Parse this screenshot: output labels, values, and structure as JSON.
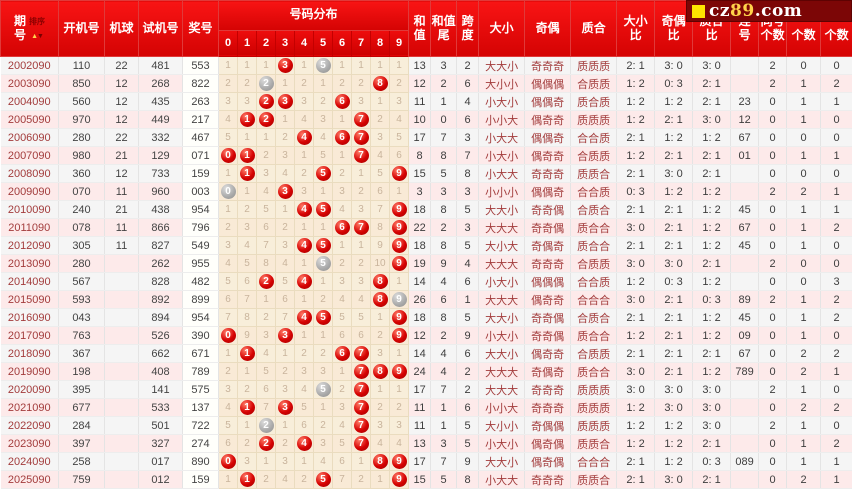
{
  "header": {
    "period": "期\n号",
    "sort": "排序",
    "sort_up": "▲",
    "sort_down": "▼",
    "kaiji": "开机号",
    "jiqiu": "机球",
    "shiji": "试机号",
    "jiang": "奖号",
    "dist_title": "号码分布",
    "digits": [
      "0",
      "1",
      "2",
      "3",
      "4",
      "5",
      "6",
      "7",
      "8",
      "9"
    ],
    "he": "和\n值",
    "hewei": "和值\n尾",
    "kua": "跨\n度",
    "daxiao": "大小",
    "jiou": "奇偶",
    "zhihe": "质合",
    "dxb": "大小\n比",
    "job": "奇偶\n比",
    "zhb": "质合\n比",
    "lian": "连\n号",
    "tong": "同号\n个数",
    "gs2": "\n个数",
    "gs3": "\n个数"
  },
  "logo": {
    "square": "",
    "cz": "cz",
    "n89": "89",
    "com": ".com"
  },
  "colors": {
    "header_red": "#e00505",
    "row_gray": "#f5f5f5",
    "row_pink": "#fdeaea",
    "dist_cream": "#f8eeda",
    "dist_text": "#c9b49c",
    "ball_red": "#d60202",
    "ball_gray": "#a9a9a9",
    "period_text": "#a33c3c",
    "logo_bg": "#7c0606",
    "logo_yellow": "#ffe400"
  },
  "rows": [
    {
      "period": "2002090",
      "kaiji": "110",
      "jiqiu": "22",
      "shiji": "481",
      "jiang": "553",
      "dist": [
        "1",
        "1",
        "1",
        "R3",
        "1",
        "G5",
        "1",
        "1",
        "1",
        "1"
      ],
      "he": "13",
      "hewei": "3",
      "kua": "2",
      "dx": "大大小",
      "jo": "奇奇奇",
      "zh": "质质质",
      "dxb": "2: 1",
      "job": "3: 0",
      "zhb": "3: 0",
      "lian": "",
      "t1": "2",
      "t2": "0",
      "t3": "0"
    },
    {
      "period": "2003090",
      "kaiji": "850",
      "jiqiu": "12",
      "shiji": "268",
      "jiang": "822",
      "dist": [
        "2",
        "2",
        "G2",
        "1",
        "2",
        "1",
        "2",
        "2",
        "R8",
        "2"
      ],
      "he": "12",
      "hewei": "2",
      "kua": "6",
      "dx": "大小小",
      "jo": "偶偶偶",
      "zh": "合质质",
      "dxb": "1: 2",
      "job": "0: 3",
      "zhb": "2: 1",
      "lian": "",
      "t1": "2",
      "t2": "1",
      "t3": "2"
    },
    {
      "period": "2004090",
      "kaiji": "560",
      "jiqiu": "12",
      "shiji": "435",
      "jiang": "263",
      "dist": [
        "3",
        "3",
        "R2",
        "R3",
        "3",
        "2",
        "R6",
        "3",
        "1",
        "3"
      ],
      "he": "11",
      "hewei": "1",
      "kua": "4",
      "dx": "小大小",
      "jo": "偶偶奇",
      "zh": "质合质",
      "dxb": "1: 2",
      "job": "1: 2",
      "zhb": "2: 1",
      "lian": "23",
      "t1": "0",
      "t2": "1",
      "t3": "1"
    },
    {
      "period": "2005090",
      "kaiji": "970",
      "jiqiu": "12",
      "shiji": "449",
      "jiang": "217",
      "dist": [
        "4",
        "R1",
        "R2",
        "1",
        "4",
        "3",
        "1",
        "R7",
        "2",
        "4"
      ],
      "he": "10",
      "hewei": "0",
      "kua": "6",
      "dx": "小小大",
      "jo": "偶奇奇",
      "zh": "质质质",
      "dxb": "1: 2",
      "job": "2: 1",
      "zhb": "3: 0",
      "lian": "12",
      "t1": "0",
      "t2": "1",
      "t3": "0"
    },
    {
      "period": "2006090",
      "kaiji": "280",
      "jiqiu": "22",
      "shiji": "332",
      "jiang": "467",
      "dist": [
        "5",
        "1",
        "1",
        "2",
        "R4",
        "4",
        "R6",
        "R7",
        "3",
        "5"
      ],
      "he": "17",
      "hewei": "7",
      "kua": "3",
      "dx": "小大大",
      "jo": "偶偶奇",
      "zh": "合合质",
      "dxb": "2: 1",
      "job": "1: 2",
      "zhb": "1: 2",
      "lian": "67",
      "t1": "0",
      "t2": "0",
      "t3": "0"
    },
    {
      "period": "2007090",
      "kaiji": "980",
      "jiqiu": "21",
      "shiji": "129",
      "jiang": "071",
      "dist": [
        "R0",
        "R1",
        "2",
        "3",
        "1",
        "5",
        "1",
        "R7",
        "4",
        "6"
      ],
      "he": "8",
      "hewei": "8",
      "kua": "7",
      "dx": "小大小",
      "jo": "偶奇奇",
      "zh": "合质质",
      "dxb": "1: 2",
      "job": "2: 1",
      "zhb": "2: 1",
      "lian": "01",
      "t1": "0",
      "t2": "1",
      "t3": "1"
    },
    {
      "period": "2008090",
      "kaiji": "360",
      "jiqiu": "12",
      "shiji": "733",
      "jiang": "159",
      "dist": [
        "1",
        "R1",
        "3",
        "4",
        "2",
        "R5",
        "2",
        "1",
        "5",
        "R9"
      ],
      "he": "15",
      "hewei": "5",
      "kua": "8",
      "dx": "小大大",
      "jo": "奇奇奇",
      "zh": "质质合",
      "dxb": "2: 1",
      "job": "3: 0",
      "zhb": "2: 1",
      "lian": "",
      "t1": "0",
      "t2": "0",
      "t3": "0"
    },
    {
      "period": "2009090",
      "kaiji": "070",
      "jiqiu": "11",
      "shiji": "960",
      "jiang": "003",
      "dist": [
        "G0",
        "1",
        "4",
        "R3",
        "3",
        "1",
        "3",
        "2",
        "6",
        "1"
      ],
      "he": "3",
      "hewei": "3",
      "kua": "3",
      "dx": "小小小",
      "jo": "偶偶奇",
      "zh": "合合质",
      "dxb": "0: 3",
      "job": "1: 2",
      "zhb": "1: 2",
      "lian": "",
      "t1": "2",
      "t2": "2",
      "t3": "1"
    },
    {
      "period": "2010090",
      "kaiji": "240",
      "jiqiu": "21",
      "shiji": "438",
      "jiang": "954",
      "dist": [
        "1",
        "2",
        "5",
        "1",
        "R4",
        "R5",
        "4",
        "3",
        "7",
        "R9"
      ],
      "he": "18",
      "hewei": "8",
      "kua": "5",
      "dx": "大大小",
      "jo": "奇奇偶",
      "zh": "合质合",
      "dxb": "2: 1",
      "job": "2: 1",
      "zhb": "1: 2",
      "lian": "45",
      "t1": "0",
      "t2": "1",
      "t3": "1"
    },
    {
      "period": "2011090",
      "kaiji": "078",
      "jiqiu": "11",
      "shiji": "866",
      "jiang": "796",
      "dist": [
        "2",
        "3",
        "6",
        "2",
        "1",
        "1",
        "R6",
        "R7",
        "8",
        "R9"
      ],
      "he": "22",
      "hewei": "2",
      "kua": "3",
      "dx": "大大大",
      "jo": "奇奇偶",
      "zh": "质合合",
      "dxb": "3: 0",
      "job": "2: 1",
      "zhb": "1: 2",
      "lian": "67",
      "t1": "0",
      "t2": "1",
      "t3": "2"
    },
    {
      "period": "2012090",
      "kaiji": "305",
      "jiqiu": "11",
      "shiji": "827",
      "jiang": "549",
      "dist": [
        "3",
        "4",
        "7",
        "3",
        "R4",
        "R5",
        "1",
        "1",
        "9",
        "R9"
      ],
      "he": "18",
      "hewei": "8",
      "kua": "5",
      "dx": "大小大",
      "jo": "奇偶奇",
      "zh": "质合合",
      "dxb": "2: 1",
      "job": "2: 1",
      "zhb": "1: 2",
      "lian": "45",
      "t1": "0",
      "t2": "1",
      "t3": "0"
    },
    {
      "period": "2013090",
      "kaiji": "280",
      "jiqiu": "",
      "shiji": "262",
      "jiang": "955",
      "dist": [
        "4",
        "5",
        "8",
        "4",
        "1",
        "G5",
        "2",
        "2",
        "10",
        "R9"
      ],
      "he": "19",
      "hewei": "9",
      "kua": "4",
      "dx": "大大大",
      "jo": "奇奇奇",
      "zh": "合质质",
      "dxb": "3: 0",
      "job": "3: 0",
      "zhb": "2: 1",
      "lian": "",
      "t1": "2",
      "t2": "0",
      "t3": "0"
    },
    {
      "period": "2014090",
      "kaiji": "567",
      "jiqiu": "",
      "shiji": "828",
      "jiang": "482",
      "dist": [
        "5",
        "6",
        "R2",
        "5",
        "R4",
        "1",
        "3",
        "3",
        "R8",
        "1"
      ],
      "he": "14",
      "hewei": "4",
      "kua": "6",
      "dx": "小大小",
      "jo": "偶偶偶",
      "zh": "合合质",
      "dxb": "1: 2",
      "job": "0: 3",
      "zhb": "1: 2",
      "lian": "",
      "t1": "0",
      "t2": "0",
      "t3": "3"
    },
    {
      "period": "2015090",
      "kaiji": "593",
      "jiqiu": "",
      "shiji": "892",
      "jiang": "899",
      "dist": [
        "6",
        "7",
        "1",
        "6",
        "1",
        "2",
        "4",
        "4",
        "R8",
        "G9"
      ],
      "he": "26",
      "hewei": "6",
      "kua": "1",
      "dx": "大大大",
      "jo": "偶奇奇",
      "zh": "合合合",
      "dxb": "3: 0",
      "job": "2: 1",
      "zhb": "0: 3",
      "lian": "89",
      "t1": "2",
      "t2": "1",
      "t3": "2"
    },
    {
      "period": "2016090",
      "kaiji": "043",
      "jiqiu": "",
      "shiji": "894",
      "jiang": "954",
      "dist": [
        "7",
        "8",
        "2",
        "7",
        "R4",
        "R5",
        "5",
        "5",
        "1",
        "R9"
      ],
      "he": "18",
      "hewei": "8",
      "kua": "5",
      "dx": "大大小",
      "jo": "奇奇偶",
      "zh": "合质合",
      "dxb": "2: 1",
      "job": "2: 1",
      "zhb": "1: 2",
      "lian": "45",
      "t1": "0",
      "t2": "1",
      "t3": "2"
    },
    {
      "period": "2017090",
      "kaiji": "763",
      "jiqiu": "",
      "shiji": "526",
      "jiang": "390",
      "dist": [
        "R0",
        "9",
        "3",
        "R3",
        "1",
        "1",
        "6",
        "6",
        "2",
        "R9"
      ],
      "he": "12",
      "hewei": "2",
      "kua": "9",
      "dx": "小大小",
      "jo": "奇奇偶",
      "zh": "质合合",
      "dxb": "1: 2",
      "job": "2: 1",
      "zhb": "1: 2",
      "lian": "09",
      "t1": "0",
      "t2": "1",
      "t3": "0"
    },
    {
      "period": "2018090",
      "kaiji": "367",
      "jiqiu": "",
      "shiji": "662",
      "jiang": "671",
      "dist": [
        "1",
        "R1",
        "4",
        "1",
        "2",
        "2",
        "R6",
        "R7",
        "3",
        "1"
      ],
      "he": "14",
      "hewei": "4",
      "kua": "6",
      "dx": "大大小",
      "jo": "偶奇奇",
      "zh": "合质质",
      "dxb": "2: 1",
      "job": "2: 1",
      "zhb": "2: 1",
      "lian": "67",
      "t1": "0",
      "t2": "2",
      "t3": "2"
    },
    {
      "period": "2019090",
      "kaiji": "198",
      "jiqiu": "",
      "shiji": "408",
      "jiang": "789",
      "dist": [
        "2",
        "1",
        "5",
        "2",
        "3",
        "3",
        "1",
        "R7",
        "R8",
        "R9"
      ],
      "he": "24",
      "hewei": "4",
      "kua": "2",
      "dx": "大大大",
      "jo": "奇偶奇",
      "zh": "质合合",
      "dxb": "3: 0",
      "job": "2: 1",
      "zhb": "1: 2",
      "lian": "789",
      "t1": "0",
      "t2": "2",
      "t3": "1"
    },
    {
      "period": "2020090",
      "kaiji": "395",
      "jiqiu": "",
      "shiji": "141",
      "jiang": "575",
      "dist": [
        "3",
        "2",
        "6",
        "3",
        "4",
        "G5",
        "2",
        "R7",
        "1",
        "1"
      ],
      "he": "17",
      "hewei": "7",
      "kua": "2",
      "dx": "大大大",
      "jo": "奇奇奇",
      "zh": "质质质",
      "dxb": "3: 0",
      "job": "3: 0",
      "zhb": "3: 0",
      "lian": "",
      "t1": "2",
      "t2": "1",
      "t3": "0"
    },
    {
      "period": "2021090",
      "kaiji": "677",
      "jiqiu": "",
      "shiji": "533",
      "jiang": "137",
      "dist": [
        "4",
        "R1",
        "7",
        "R3",
        "5",
        "1",
        "3",
        "R7",
        "2",
        "2"
      ],
      "he": "11",
      "hewei": "1",
      "kua": "6",
      "dx": "小小大",
      "jo": "奇奇奇",
      "zh": "质质质",
      "dxb": "1: 2",
      "job": "3: 0",
      "zhb": "3: 0",
      "lian": "",
      "t1": "0",
      "t2": "2",
      "t3": "2"
    },
    {
      "period": "2022090",
      "kaiji": "284",
      "jiqiu": "",
      "shiji": "501",
      "jiang": "722",
      "dist": [
        "5",
        "1",
        "G2",
        "1",
        "6",
        "2",
        "4",
        "R7",
        "3",
        "3"
      ],
      "he": "11",
      "hewei": "1",
      "kua": "5",
      "dx": "大小小",
      "jo": "奇偶偶",
      "zh": "质质质",
      "dxb": "1: 2",
      "job": "1: 2",
      "zhb": "3: 0",
      "lian": "",
      "t1": "2",
      "t2": "1",
      "t3": "0"
    },
    {
      "period": "2023090",
      "kaiji": "397",
      "jiqiu": "",
      "shiji": "327",
      "jiang": "274",
      "dist": [
        "6",
        "2",
        "R2",
        "2",
        "R4",
        "3",
        "5",
        "R7",
        "4",
        "4"
      ],
      "he": "13",
      "hewei": "3",
      "kua": "5",
      "dx": "小大小",
      "jo": "偶奇偶",
      "zh": "质质合",
      "dxb": "1: 2",
      "job": "1: 2",
      "zhb": "2: 1",
      "lian": "",
      "t1": "0",
      "t2": "1",
      "t3": "2"
    },
    {
      "period": "2024090",
      "kaiji": "258",
      "jiqiu": "",
      "shiji": "017",
      "jiang": "890",
      "dist": [
        "R0",
        "3",
        "1",
        "3",
        "1",
        "4",
        "6",
        "1",
        "R8",
        "R9"
      ],
      "he": "17",
      "hewei": "7",
      "kua": "9",
      "dx": "大大小",
      "jo": "偶奇偶",
      "zh": "合合合",
      "dxb": "2: 1",
      "job": "1: 2",
      "zhb": "0: 3",
      "lian": "089",
      "t1": "0",
      "t2": "1",
      "t3": "1"
    },
    {
      "period": "2025090",
      "kaiji": "759",
      "jiqiu": "",
      "shiji": "012",
      "jiang": "159",
      "dist": [
        "1",
        "R1",
        "2",
        "4",
        "2",
        "R5",
        "7",
        "2",
        "1",
        "R9"
      ],
      "he": "15",
      "hewei": "5",
      "kua": "8",
      "dx": "小大大",
      "jo": "奇奇奇",
      "zh": "质质合",
      "dxb": "2: 1",
      "job": "3: 0",
      "zhb": "2: 1",
      "lian": "",
      "t1": "0",
      "t2": "2",
      "t3": "1"
    }
  ]
}
